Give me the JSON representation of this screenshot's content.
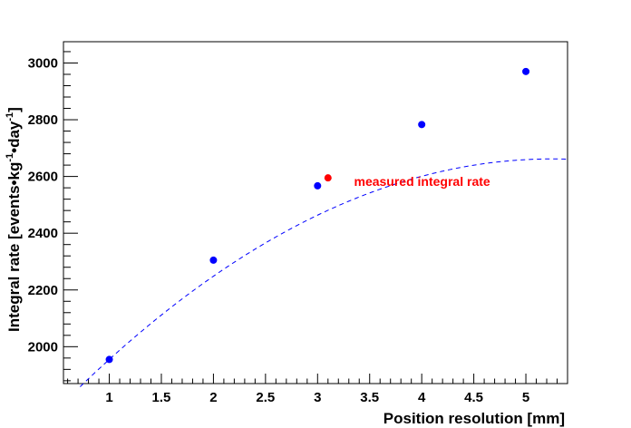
{
  "chart_data": {
    "type": "scatter",
    "xlabel": "Position resolution [mm]",
    "ylabel_parts": [
      "Integral rate [events",
      "kg",
      "-1",
      "day",
      "-1",
      "]"
    ],
    "xlim": [
      0.56,
      5.4
    ],
    "ylim": [
      1870,
      3075
    ],
    "x_ticks": [
      1,
      1.5,
      2,
      2.5,
      3,
      3.5,
      4,
      4.5,
      5
    ],
    "x_tick_labels": [
      "1",
      "1.5",
      "2",
      "2.5",
      "3",
      "3.5",
      "4",
      "4.5",
      "5"
    ],
    "y_ticks": [
      2000,
      2200,
      2400,
      2600,
      2800,
      3000
    ],
    "y_tick_labels": [
      "2000",
      "2200",
      "2400",
      "2600",
      "2800",
      "3000"
    ],
    "series": [
      {
        "points": [
          {
            "x": 1,
            "y": 1955
          },
          {
            "x": 2,
            "y": 2305
          },
          {
            "x": 3,
            "y": 2567
          },
          {
            "x": 4,
            "y": 2783
          },
          {
            "x": 5,
            "y": 2970
          }
        ],
        "color": "#0000ff"
      },
      {
        "points": [
          {
            "x": 3.1,
            "y": 2595
          }
        ],
        "color": "#ff0000"
      }
    ],
    "fit_curve": {
      "style": "dashed",
      "color": "#0000ff",
      "x_range": [
        0.72,
        5.4
      ],
      "coefficients": [
        1583.4,
        410.7,
        -39.1
      ]
    },
    "annotation": {
      "text": "measured integral rate",
      "color": "#ff0000",
      "x": 3.35,
      "y": 2582
    }
  }
}
